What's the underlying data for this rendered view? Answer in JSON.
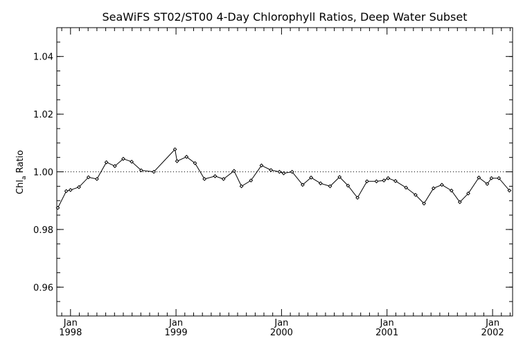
{
  "chart_data": {
    "type": "line",
    "title": "SeaWiFS ST02/ST00 4-Day Chlorophyll Ratios, Deep Water Subset",
    "ylabel_main": "Chl",
    "ylabel_sub": "a",
    "ylabel_rest": " Ratio",
    "xlabel": "",
    "x_unit": "decimal year",
    "xlim": [
      1997.87,
      2002.19
    ],
    "ylim": [
      0.95,
      1.05
    ],
    "ygrid": false,
    "y_major_ticks": [
      0.96,
      0.98,
      1.0,
      1.02,
      1.04
    ],
    "y_tick_labels": [
      "0.96",
      "0.98",
      "1.00",
      "1.02",
      "1.04"
    ],
    "x_major_ticks": [
      1998.0,
      1999.0,
      2000.0,
      2001.0,
      2002.0
    ],
    "x_tick_labels_month": [
      "Jan",
      "Jan",
      "Jan",
      "Jan",
      "Jan"
    ],
    "x_tick_labels_year": [
      "1998",
      "1999",
      "2000",
      "2001",
      "2002"
    ],
    "reference_line": {
      "y": 1.0,
      "style": "dotted"
    },
    "series": [
      {
        "marker": "open-diamond",
        "x": [
          1997.88,
          1997.96,
          1998.0,
          1998.08,
          1998.17,
          1998.25,
          1998.34,
          1998.42,
          1998.5,
          1998.58,
          1998.67,
          1998.79,
          1998.99,
          1999.01,
          1999.1,
          1999.18,
          1999.27,
          1999.37,
          1999.45,
          1999.55,
          1999.62,
          1999.71,
          1999.81,
          1999.9,
          1999.98,
          2000.02,
          2000.1,
          2000.2,
          2000.28,
          2000.37,
          2000.46,
          2000.55,
          2000.63,
          2000.72,
          2000.81,
          2000.9,
          2000.97,
          2001.01,
          2001.08,
          2001.18,
          2001.27,
          2001.35,
          2001.44,
          2001.52,
          2001.61,
          2001.69,
          2001.77,
          2001.87,
          2001.95,
          2001.99,
          2002.06,
          2002.16
        ],
        "y": [
          0.9875,
          0.9933,
          0.9937,
          0.9947,
          0.9981,
          0.9975,
          1.0033,
          1.002,
          1.0045,
          1.0035,
          1.0005,
          1.0,
          1.0078,
          1.0037,
          1.0052,
          1.003,
          0.9975,
          0.9985,
          0.9975,
          1.0003,
          0.995,
          0.997,
          1.0022,
          1.0006,
          1.0,
          0.9995,
          1.0,
          0.9955,
          0.998,
          0.996,
          0.995,
          0.9982,
          0.9952,
          0.991,
          0.9967,
          0.9967,
          0.997,
          0.9978,
          0.9968,
          0.9945,
          0.992,
          0.989,
          0.9943,
          0.9955,
          0.9935,
          0.9895,
          0.9925,
          0.998,
          0.9958,
          0.9978,
          0.9978,
          0.9935
        ]
      }
    ]
  }
}
